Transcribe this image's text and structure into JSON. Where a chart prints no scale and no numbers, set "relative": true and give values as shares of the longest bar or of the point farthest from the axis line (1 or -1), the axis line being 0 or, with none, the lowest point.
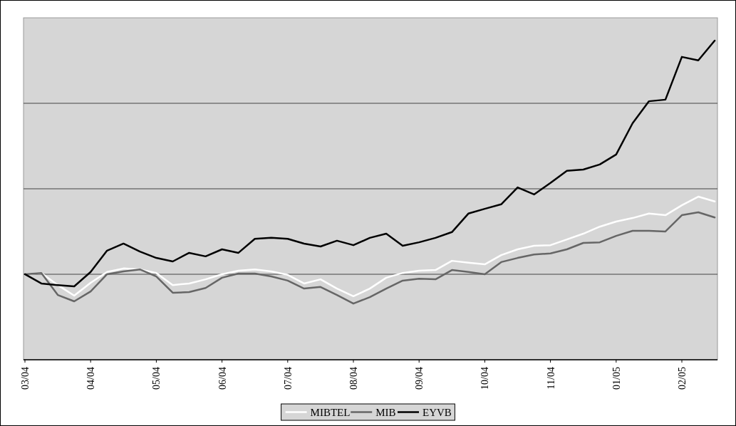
{
  "chart_data": {
    "type": "line",
    "relative": true,
    "grid": "y",
    "legend": "bottom",
    "marker": "none",
    "line_style": "solid",
    "categories": [
      "03/04",
      null,
      null,
      null,
      "04/04",
      null,
      null,
      null,
      "05/04",
      null,
      null,
      null,
      "06/04",
      null,
      null,
      null,
      "07/04",
      null,
      null,
      null,
      "08/04",
      null,
      null,
      null,
      "09/04",
      null,
      null,
      null,
      "10/04",
      null,
      null,
      null,
      "11/04",
      null,
      null,
      null,
      "01/05",
      null,
      null,
      null,
      "02/05",
      null,
      null
    ],
    "series": [
      {
        "name": "MIBTEL",
        "color": "#ffffff",
        "values": [
          0.268,
          0.272,
          0.234,
          0.201,
          0.241,
          0.275,
          0.286,
          0.283,
          0.272,
          0.234,
          0.239,
          0.252,
          0.268,
          0.279,
          0.283,
          0.277,
          0.266,
          0.239,
          0.252,
          0.223,
          0.199,
          0.223,
          0.257,
          0.272,
          0.279,
          0.281,
          0.31,
          0.304,
          0.299,
          0.328,
          0.346,
          0.357,
          0.359,
          0.377,
          0.395,
          0.417,
          0.433,
          0.444,
          0.458,
          0.453,
          0.484,
          0.511,
          0.496
        ]
      },
      {
        "name": "MIB",
        "color": "#666666",
        "values": [
          0.268,
          0.272,
          0.203,
          0.183,
          0.214,
          0.268,
          0.277,
          0.283,
          0.261,
          0.21,
          0.212,
          0.225,
          0.257,
          0.27,
          0.27,
          0.261,
          0.248,
          0.223,
          0.228,
          0.203,
          0.176,
          0.196,
          0.223,
          0.248,
          0.254,
          0.252,
          0.281,
          0.275,
          0.268,
          0.306,
          0.319,
          0.33,
          0.333,
          0.346,
          0.366,
          0.368,
          0.388,
          0.404,
          0.404,
          0.402,
          0.453,
          0.462,
          0.446
        ]
      },
      {
        "name": "EYVB",
        "color": "#000000",
        "values": [
          0.268,
          0.239,
          0.234,
          0.23,
          0.275,
          0.342,
          0.364,
          0.339,
          0.319,
          0.308,
          0.335,
          0.324,
          0.346,
          0.335,
          0.379,
          0.382,
          0.379,
          0.364,
          0.355,
          0.373,
          0.359,
          0.382,
          0.395,
          0.357,
          0.368,
          0.382,
          0.4,
          0.458,
          0.473,
          0.487,
          0.54,
          0.518,
          0.554,
          0.592,
          0.596,
          0.612,
          0.643,
          0.741,
          0.81,
          0.815,
          0.949,
          0.938,
          1.0
        ]
      }
    ]
  }
}
